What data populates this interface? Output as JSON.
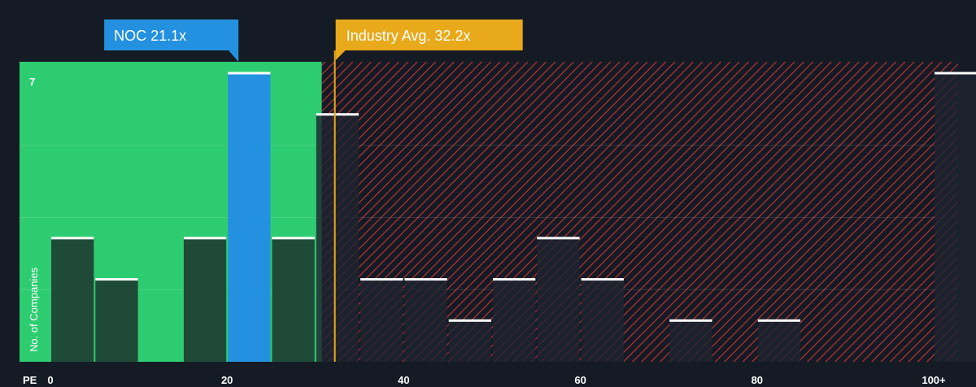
{
  "chart_data": {
    "type": "bar",
    "xlabel": "PE",
    "ylabel": "No. of Companies",
    "x_tick_labels": [
      "0",
      "20",
      "40",
      "60",
      "80",
      "100+"
    ],
    "x_ticks": [
      0,
      20,
      40,
      60,
      80,
      100
    ],
    "y_tick_labels": [
      "7"
    ],
    "ylim": [
      0,
      7.2
    ],
    "xlim": [
      0,
      102
    ],
    "grid": true,
    "bin_width": 5,
    "bins": [
      {
        "x_start": 0,
        "value": 3
      },
      {
        "x_start": 5,
        "value": 2
      },
      {
        "x_start": 15,
        "value": 3
      },
      {
        "x_start": 20,
        "value": 7,
        "highlight": true
      },
      {
        "x_start": 25,
        "value": 3
      },
      {
        "x_start": 30,
        "value": 6
      },
      {
        "x_start": 35,
        "value": 2
      },
      {
        "x_start": 40,
        "value": 2
      },
      {
        "x_start": 45,
        "value": 1
      },
      {
        "x_start": 50,
        "value": 2
      },
      {
        "x_start": 55,
        "value": 3
      },
      {
        "x_start": 60,
        "value": 2
      },
      {
        "x_start": 70,
        "value": 1
      },
      {
        "x_start": 80,
        "value": 1
      },
      {
        "x_start": 100,
        "value": 7
      }
    ],
    "company_marker": {
      "label": "NOC 21.1x",
      "value": 21.1
    },
    "industry_marker": {
      "label": "Industry Avg. 32.2x",
      "value": 32.2
    },
    "colors": {
      "background": "#151b24",
      "below_avg_zone": "#2ecc71",
      "above_avg_zone_hatch": "#c8333a",
      "bar": "#1f4a38",
      "bar_over_hatch": "#1e2430",
      "bar_top": "#ffffff",
      "highlight_bar": "#2491e0",
      "company_label_bg": "#2491e0",
      "industry_label_bg": "#e8a91a",
      "text": "#ffffff"
    }
  }
}
